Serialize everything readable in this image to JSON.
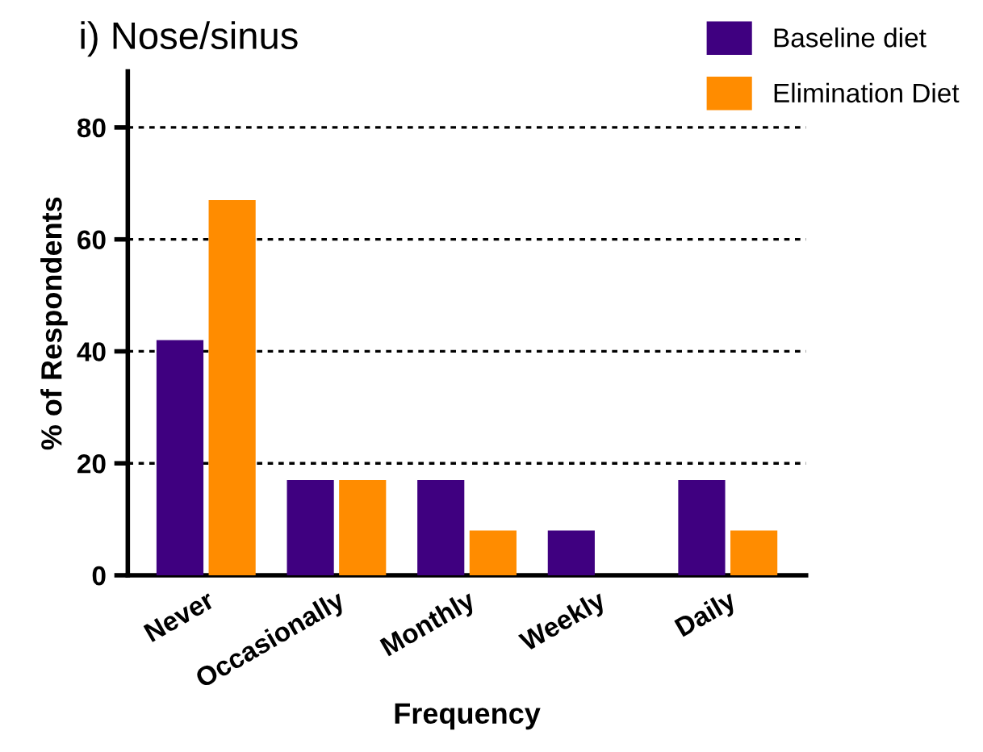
{
  "chart_data": {
    "type": "bar",
    "title": "i) Nose/sinus",
    "xlabel": "Frequency",
    "ylabel": "% of Respondents",
    "categories": [
      "Never",
      "Occasionally",
      "Monthly",
      "Weekly",
      "Daily"
    ],
    "series": [
      {
        "name": "Baseline diet",
        "color": "#3f0080",
        "values": [
          42,
          17,
          17,
          8,
          17
        ]
      },
      {
        "name": "Elimination Diet",
        "color": "#ff8c00",
        "values": [
          67,
          17,
          8,
          0,
          8
        ]
      }
    ],
    "ylim": [
      0,
      90
    ],
    "yticks": [
      0,
      20,
      40,
      60,
      80
    ],
    "grid": "y",
    "legend": "top right"
  }
}
